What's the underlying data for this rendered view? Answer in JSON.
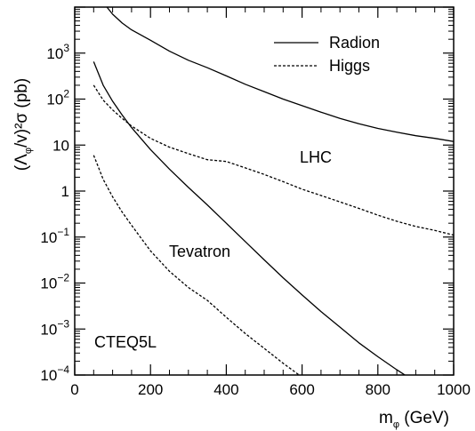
{
  "chart_data": {
    "type": "line",
    "title": "",
    "xlabel": {
      "main": "m",
      "sub": "φ",
      "rest": " (GeV)"
    },
    "ylabel": {
      "open": "(",
      "lambda": "Λ",
      "sub": "φ",
      "rest": "/v)²σ (pb)"
    },
    "xlim": [
      0,
      1000
    ],
    "ylim": [
      0.0001,
      10000
    ],
    "yscale": "log",
    "legend_position": "top-right",
    "x_ticks": [
      {
        "value": 0,
        "label": "0"
      },
      {
        "value": 200,
        "label": "200"
      },
      {
        "value": 400,
        "label": "400"
      },
      {
        "value": 600,
        "label": "600"
      },
      {
        "value": 800,
        "label": "800"
      },
      {
        "value": 1000,
        "label": "1000"
      }
    ],
    "y_ticks": [
      {
        "value": 0.0001,
        "base": "10",
        "exp": "−4"
      },
      {
        "value": 0.001,
        "base": "10",
        "exp": "−3"
      },
      {
        "value": 0.01,
        "base": "10",
        "exp": "−2"
      },
      {
        "value": 0.1,
        "base": "10",
        "exp": "−1"
      },
      {
        "value": 1,
        "base": "1",
        "exp": ""
      },
      {
        "value": 10,
        "base": "10",
        "exp": ""
      },
      {
        "value": 100,
        "base": "10",
        "exp": "2"
      },
      {
        "value": 1000,
        "base": "10",
        "exp": "3"
      }
    ],
    "annotations": [
      {
        "text": "LHC",
        "x": 620,
        "y": 4
      },
      {
        "text": "Tevatron",
        "x": 260,
        "y": 0.03
      },
      {
        "text": "CTEQ5L",
        "x": 60,
        "y": 0.00045
      }
    ],
    "legend": [
      {
        "label": "Radion",
        "style": "solid"
      },
      {
        "label": "Higgs",
        "style": "dashed"
      }
    ],
    "series": [
      {
        "name": "Radion",
        "group": "LHC",
        "style": "solid",
        "x": [
          85,
          100,
          125,
          150,
          200,
          250,
          300,
          350,
          400,
          450,
          500,
          550,
          600,
          650,
          700,
          750,
          800,
          850,
          900,
          950,
          1000
        ],
        "y": [
          10000,
          7000,
          4500,
          3200,
          1900,
          1100,
          700,
          480,
          320,
          210,
          145,
          100,
          72,
          52,
          38,
          29,
          23,
          19,
          16,
          14,
          12
        ]
      },
      {
        "name": "Higgs",
        "group": "LHC",
        "style": "dashed",
        "x": [
          50,
          75,
          100,
          125,
          150,
          200,
          250,
          300,
          350,
          400,
          450,
          500,
          550,
          600,
          650,
          700,
          750,
          800,
          850,
          900,
          950,
          1000
        ],
        "y": [
          200,
          95,
          58,
          38,
          26,
          14,
          9,
          6.5,
          4.8,
          4.4,
          3.2,
          2.3,
          1.6,
          1.1,
          0.8,
          0.58,
          0.42,
          0.3,
          0.22,
          0.17,
          0.14,
          0.11
        ]
      },
      {
        "name": "Radion",
        "group": "Tevatron",
        "style": "solid",
        "x": [
          50,
          75,
          100,
          125,
          150,
          200,
          250,
          300,
          350,
          400,
          450,
          500,
          550,
          600,
          650,
          700,
          750,
          800,
          850,
          900,
          950
        ],
        "y": [
          650,
          200,
          90,
          45,
          24,
          8,
          3,
          1.2,
          0.5,
          0.2,
          0.08,
          0.032,
          0.013,
          0.0055,
          0.0024,
          0.0011,
          0.0005,
          0.00025,
          0.00013,
          7e-05,
          0.0001
        ]
      },
      {
        "name": "Higgs",
        "group": "Tevatron",
        "style": "dashed",
        "x": [
          50,
          75,
          100,
          125,
          150,
          200,
          250,
          300,
          350,
          400,
          450,
          500,
          550,
          600,
          650,
          660
        ],
        "y": [
          6,
          1.8,
          0.75,
          0.35,
          0.18,
          0.05,
          0.018,
          0.008,
          0.0042,
          0.0018,
          0.0008,
          0.00038,
          0.00018,
          9e-05,
          5e-05,
          0.0001
        ]
      }
    ]
  }
}
